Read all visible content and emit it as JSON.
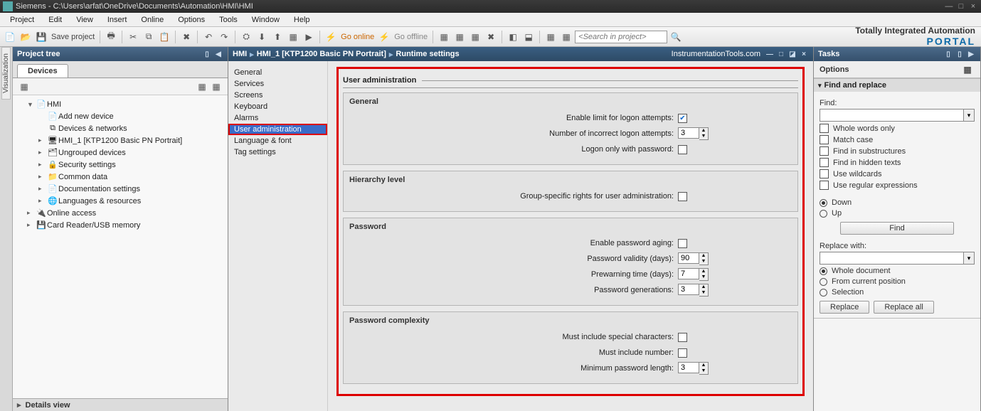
{
  "title": "Siemens  -  C:\\Users\\arfat\\OneDrive\\Documents\\Automation\\HMI\\HMI",
  "menus": [
    "Project",
    "Edit",
    "View",
    "Insert",
    "Online",
    "Options",
    "Tools",
    "Window",
    "Help"
  ],
  "toolbar": {
    "save_label": "Save project",
    "go_online": "Go online",
    "go_offline": "Go offline",
    "search_placeholder": "<Search in project>"
  },
  "brand": {
    "line1": "Totally Integrated Automation",
    "line2": "PORTAL"
  },
  "project_tree": {
    "title": "Project tree",
    "tab": "Devices",
    "items": [
      {
        "l": 1,
        "exp": "▼",
        "ic": "📄",
        "label": "HMI"
      },
      {
        "l": 2,
        "exp": "",
        "ic": "📄",
        "label": "Add new device"
      },
      {
        "l": 2,
        "exp": "",
        "ic": "⧉",
        "label": "Devices & networks"
      },
      {
        "l": 2,
        "exp": "▸",
        "ic": "🖥",
        "label": "HMI_1 [KTP1200 Basic PN Portrait]"
      },
      {
        "l": 2,
        "exp": "▸",
        "ic": "🗂",
        "label": "Ungrouped devices"
      },
      {
        "l": 2,
        "exp": "▸",
        "ic": "🔒",
        "label": "Security settings"
      },
      {
        "l": 2,
        "exp": "▸",
        "ic": "📁",
        "label": "Common data"
      },
      {
        "l": 2,
        "exp": "▸",
        "ic": "📄",
        "label": "Documentation settings"
      },
      {
        "l": 2,
        "exp": "▸",
        "ic": "🌐",
        "label": "Languages & resources"
      },
      {
        "l": 1,
        "exp": "▸",
        "ic": "🔌",
        "label": "Online access"
      },
      {
        "l": 1,
        "exp": "▸",
        "ic": "💾",
        "label": "Card Reader/USB memory"
      }
    ],
    "details": "Details view"
  },
  "editor": {
    "crumbs": [
      "HMI",
      "HMI_1 [KTP1200 Basic PN Portrait]",
      "Runtime settings"
    ],
    "watermark": "InstrumentationTools.com",
    "nav": [
      "General",
      "Services",
      "Screens",
      "Keyboard",
      "Alarms",
      "User administration",
      "Language & font",
      "Tag settings"
    ],
    "nav_selected": 5,
    "page_title": "User administration",
    "groups": {
      "general": {
        "title": "General",
        "enable_limit": {
          "label": "Enable limit for logon attempts:",
          "checked": true
        },
        "attempts": {
          "label": "Number of incorrect logon attempts:",
          "value": "3"
        },
        "logon_pw": {
          "label": "Logon only with password:",
          "checked": false
        }
      },
      "hierarchy": {
        "title": "Hierarchy level",
        "group_rights": {
          "label": "Group-specific rights for user administration:",
          "checked": false
        }
      },
      "password": {
        "title": "Password",
        "aging": {
          "label": "Enable password aging:",
          "checked": false
        },
        "validity": {
          "label": "Password validity (days):",
          "value": "90"
        },
        "prewarn": {
          "label": "Prewarning time (days):",
          "value": "7"
        },
        "gens": {
          "label": "Password generations:",
          "value": "3"
        }
      },
      "complexity": {
        "title": "Password complexity",
        "special": {
          "label": "Must include special characters:",
          "checked": false
        },
        "number": {
          "label": "Must include number:",
          "checked": false
        },
        "minlen": {
          "label": "Minimum password length:",
          "value": "3"
        }
      }
    }
  },
  "tasks": {
    "title": "Tasks",
    "options": "Options",
    "find_replace": "Find and replace",
    "find_label": "Find:",
    "checks": [
      "Whole words only",
      "Match case",
      "Find in substructures",
      "Find in hidden texts",
      "Use wildcards",
      "Use regular expressions"
    ],
    "dir": {
      "down": "Down",
      "up": "Up"
    },
    "find_btn": "Find",
    "replace_label": "Replace with:",
    "scope": [
      "Whole document",
      "From current position",
      "Selection"
    ],
    "scope_selected": 0,
    "replace_btn": "Replace",
    "replace_all_btn": "Replace all"
  },
  "vtab": "Visualization"
}
